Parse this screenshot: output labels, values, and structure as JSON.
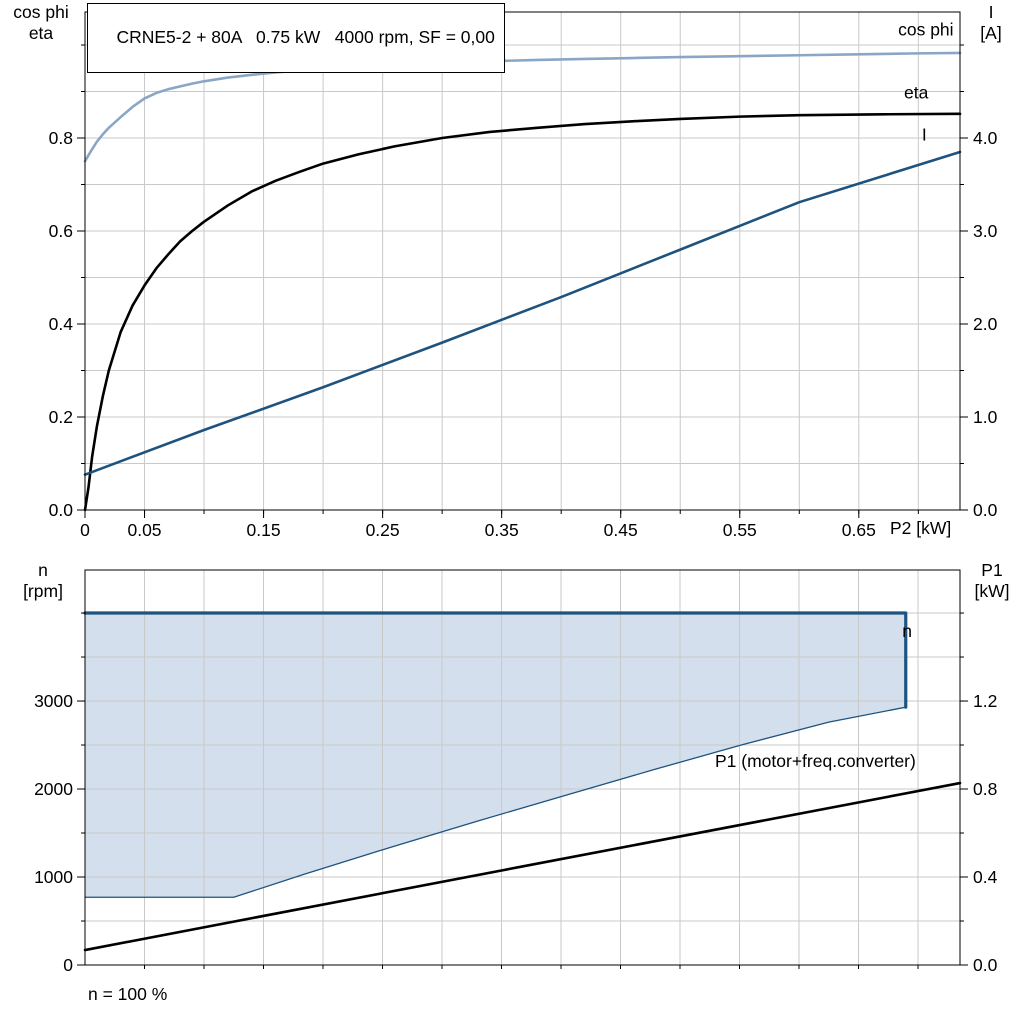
{
  "footer_note": "n = 100 %",
  "chart_data": [
    {
      "id": "motor-performance",
      "type": "line",
      "title": "CRNE5-2 + 80A   0.75 kW   4000 rpm, SF = 0,00",
      "x_axis": {
        "label": "P2 [kW]",
        "range": [
          0,
          0.735
        ],
        "ticks": [
          {
            "v": 0,
            "label": "0"
          },
          {
            "v": 0.05,
            "label": "0.05"
          },
          {
            "v": 0.15,
            "label": "0.15"
          },
          {
            "v": 0.25,
            "label": "0.25"
          },
          {
            "v": 0.35,
            "label": "0.35"
          },
          {
            "v": 0.45,
            "label": "0.45"
          },
          {
            "v": 0.55,
            "label": "0.55"
          },
          {
            "v": 0.65,
            "label": "0.65"
          }
        ],
        "grid": [
          0.05,
          0.1,
          0.15,
          0.2,
          0.25,
          0.3,
          0.35,
          0.4,
          0.45,
          0.5,
          0.55,
          0.6,
          0.65,
          0.7
        ]
      },
      "y_left": {
        "label_lines": [
          "cos phi",
          "eta"
        ],
        "range": [
          0,
          1.071
        ],
        "ticks": [
          {
            "v": 0,
            "label": "0.0"
          },
          {
            "v": 0.2,
            "label": "0.2"
          },
          {
            "v": 0.4,
            "label": "0.4"
          },
          {
            "v": 0.6,
            "label": "0.6"
          },
          {
            "v": 0.8,
            "label": "0.8"
          }
        ],
        "grid": [
          0.1,
          0.2,
          0.3,
          0.4,
          0.5,
          0.6,
          0.7,
          0.8,
          0.9,
          1.0
        ]
      },
      "y_right": {
        "label_lines": [
          "I",
          "[A]"
        ],
        "scale_from_left": 5,
        "ticks": [
          {
            "v": 0,
            "label": "0.0"
          },
          {
            "v": 1,
            "label": "1.0"
          },
          {
            "v": 2,
            "label": "2.0"
          },
          {
            "v": 3,
            "label": "3.0"
          },
          {
            "v": 4,
            "label": "4.0"
          }
        ]
      },
      "series": [
        {
          "name": "cos phi",
          "axis": "left",
          "color": "#8aa6c5",
          "width": 2.6,
          "points": [
            [
              0,
              0.75
            ],
            [
              0.005,
              0.772
            ],
            [
              0.01,
              0.792
            ],
            [
              0.015,
              0.808
            ],
            [
              0.02,
              0.822
            ],
            [
              0.03,
              0.845
            ],
            [
              0.04,
              0.867
            ],
            [
              0.05,
              0.885
            ],
            [
              0.06,
              0.897
            ],
            [
              0.07,
              0.905
            ],
            [
              0.08,
              0.911
            ],
            [
              0.09,
              0.917
            ],
            [
              0.1,
              0.922
            ],
            [
              0.12,
              0.93
            ],
            [
              0.14,
              0.936
            ],
            [
              0.16,
              0.941
            ],
            [
              0.18,
              0.945
            ],
            [
              0.2,
              0.949
            ],
            [
              0.23,
              0.953
            ],
            [
              0.26,
              0.957
            ],
            [
              0.3,
              0.961
            ],
            [
              0.34,
              0.965
            ],
            [
              0.38,
              0.968
            ],
            [
              0.42,
              0.97
            ],
            [
              0.46,
              0.972
            ],
            [
              0.5,
              0.974
            ],
            [
              0.55,
              0.976
            ],
            [
              0.6,
              0.978
            ],
            [
              0.65,
              0.98
            ],
            [
              0.7,
              0.982
            ],
            [
              0.735,
              0.983
            ]
          ]
        },
        {
          "name": "eta",
          "axis": "left",
          "color": "#000000",
          "width": 2.6,
          "points": [
            [
              0,
              0
            ],
            [
              0.003,
              0.05
            ],
            [
              0.006,
              0.115
            ],
            [
              0.01,
              0.18
            ],
            [
              0.015,
              0.245
            ],
            [
              0.02,
              0.3
            ],
            [
              0.03,
              0.383
            ],
            [
              0.04,
              0.44
            ],
            [
              0.05,
              0.483
            ],
            [
              0.06,
              0.52
            ],
            [
              0.07,
              0.55
            ],
            [
              0.08,
              0.578
            ],
            [
              0.09,
              0.6
            ],
            [
              0.1,
              0.62
            ],
            [
              0.12,
              0.655
            ],
            [
              0.14,
              0.685
            ],
            [
              0.16,
              0.708
            ],
            [
              0.18,
              0.727
            ],
            [
              0.2,
              0.745
            ],
            [
              0.23,
              0.765
            ],
            [
              0.26,
              0.782
            ],
            [
              0.3,
              0.8
            ],
            [
              0.34,
              0.813
            ],
            [
              0.38,
              0.822
            ],
            [
              0.42,
              0.83
            ],
            [
              0.46,
              0.836
            ],
            [
              0.5,
              0.841
            ],
            [
              0.55,
              0.846
            ],
            [
              0.6,
              0.849
            ],
            [
              0.67,
              0.851
            ],
            [
              0.735,
              0.852
            ]
          ]
        },
        {
          "name": "I",
          "axis": "right",
          "color": "#1e537f",
          "width": 2.6,
          "points": [
            [
              0,
              0.38
            ],
            [
              0.1,
              0.86
            ],
            [
              0.2,
              1.32
            ],
            [
              0.3,
              1.8
            ],
            [
              0.4,
              2.29
            ],
            [
              0.5,
              2.8
            ],
            [
              0.6,
              3.31
            ],
            [
              0.735,
              3.85
            ]
          ]
        }
      ],
      "annotations": [
        {
          "text": "cos phi",
          "x": 0.683,
          "y": 1.02,
          "color": "#8aa6c5"
        },
        {
          "text": "eta",
          "x": 0.688,
          "y": 0.885,
          "color": "#000000"
        },
        {
          "text": "I",
          "x": 0.703,
          "y": 0.795,
          "color": "#1e537f"
        }
      ]
    },
    {
      "id": "speed-and-power",
      "type": "line",
      "title": "",
      "x_axis": {
        "label": "",
        "range": [
          0,
          1
        ],
        "ticks": [],
        "grid": [
          0.068,
          0.136,
          0.204,
          0.272,
          0.34,
          0.408,
          0.476,
          0.544,
          0.612,
          0.68,
          0.748,
          0.816,
          0.884,
          0.952
        ]
      },
      "y_left": {
        "label_lines": [
          "n",
          "[rpm]"
        ],
        "range": [
          0,
          4489
        ],
        "ticks": [
          {
            "v": 0,
            "label": "0"
          },
          {
            "v": 1000,
            "label": "1000"
          },
          {
            "v": 2000,
            "label": "2000"
          },
          {
            "v": 3000,
            "label": "3000"
          }
        ],
        "grid": [
          500,
          1000,
          1500,
          2000,
          2500,
          3000,
          3500,
          4000
        ]
      },
      "y_right": {
        "label_lines": [
          "P1",
          "[kW]"
        ],
        "scale_from_left": 0.0004,
        "ticks": [
          {
            "v": 0,
            "label": "0.0"
          },
          {
            "v": 0.4,
            "label": "0.4"
          },
          {
            "v": 0.8,
            "label": "0.8"
          },
          {
            "v": 1.2,
            "label": "1.2"
          }
        ]
      },
      "region": {
        "name": "speed-operating-range",
        "fill": "#d3dfec",
        "stroke": "#1e537f",
        "points": [
          [
            0,
            4000
          ],
          [
            0.938,
            4000
          ],
          [
            0.938,
            2930
          ],
          [
            0.85,
            2760
          ],
          [
            0.75,
            2500
          ],
          [
            0.65,
            2220
          ],
          [
            0.55,
            1930
          ],
          [
            0.45,
            1640
          ],
          [
            0.35,
            1340
          ],
          [
            0.25,
            1030
          ],
          [
            0.17,
            770
          ],
          [
            0,
            770
          ]
        ]
      },
      "series": [
        {
          "name": "n",
          "axis": "left",
          "color": "#1e537f",
          "width": 3.2,
          "points": [
            [
              0,
              4000
            ],
            [
              0.938,
              4000
            ],
            [
              0.938,
              2930
            ]
          ]
        },
        {
          "name": "P1 (motor+freq.converter)",
          "axis": "right",
          "color": "#000000",
          "width": 2.6,
          "points": [
            [
              0,
              0.068
            ],
            [
              0.5,
              0.448
            ],
            [
              1,
              0.827
            ]
          ]
        }
      ],
      "annotations": [
        {
          "text": "n",
          "x": 0.934,
          "y": 3730,
          "color": "#1e537f"
        },
        {
          "text": "P1 (motor+freq.converter)",
          "x": 0.72,
          "y": 2250,
          "color": "#000000"
        }
      ]
    }
  ]
}
